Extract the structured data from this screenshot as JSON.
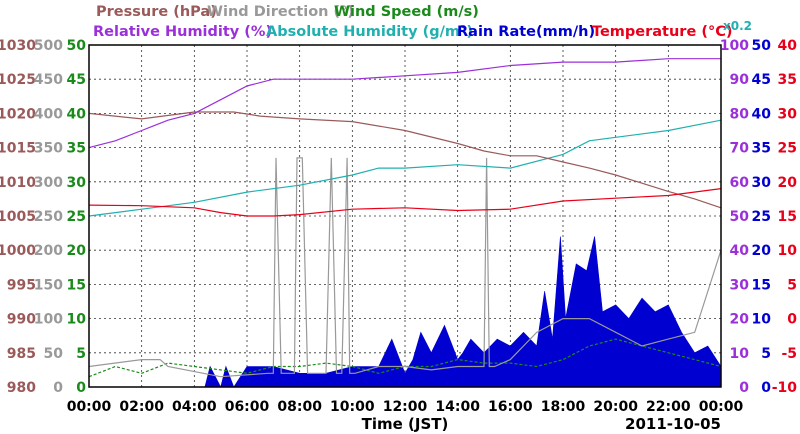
{
  "chart_data": {
    "type": "line",
    "date_label": "2011-10-05",
    "xlabel": "Time (JST)",
    "x_ticks": [
      "00:00",
      "02:00",
      "04:00",
      "06:00",
      "08:00",
      "10:00",
      "12:00",
      "14:00",
      "16:00",
      "18:00",
      "20:00",
      "22:00",
      "00:00"
    ],
    "xlim_hours": [
      0,
      24
    ],
    "legend": [
      {
        "text": "Pressure (hPa)",
        "color": "#9a5a5a"
      },
      {
        "text": "Wind Direction (°)",
        "color": "#999999"
      },
      {
        "text": "Wind Speed (m/s)",
        "color": "#1a8a1a"
      },
      {
        "text": "Relative Humidity (%)",
        "color": "#9b30d9"
      },
      {
        "text": "Absolute Humidity (g/m³)",
        "color": "#20b0b0"
      },
      {
        "text": "x0.2",
        "color": "#20b0b0"
      },
      {
        "text": "Rain Rate(mm/h)",
        "color": "#0000d0"
      },
      {
        "text": "Temperature (°C)",
        "color": "#e8001a"
      }
    ],
    "axes": {
      "pressure": {
        "color": "#9a5a5a",
        "ticks": [
          "1030",
          "1025",
          "1020",
          "1015",
          "1010",
          "1005",
          "1000",
          "995",
          "990",
          "985",
          "980"
        ],
        "ylim": [
          980,
          1030
        ]
      },
      "wind_dir": {
        "color": "#999999",
        "ticks": [
          "500",
          "450",
          "400",
          "350",
          "300",
          "250",
          "200",
          "150",
          "100",
          "50",
          "0"
        ],
        "ylim": [
          0,
          500
        ]
      },
      "wind_speed": {
        "color": "#1a8a1a",
        "ticks": [
          "50",
          "45",
          "40",
          "35",
          "30",
          "25",
          "20",
          "15",
          "10",
          "5",
          "0"
        ],
        "ylim": [
          0,
          50
        ]
      },
      "humidity": {
        "color": "#9b30d9",
        "ticks": [
          "100",
          "90",
          "80",
          "70",
          "60",
          "50",
          "40",
          "30",
          "20",
          "10",
          "0"
        ],
        "ylim": [
          0,
          100
        ]
      },
      "rain": {
        "color": "#0000d0",
        "ticks": [
          "50",
          "45",
          "40",
          "35",
          "30",
          "25",
          "20",
          "15",
          "10",
          "5",
          "0"
        ],
        "ylim": [
          0,
          50
        ]
      },
      "temperature": {
        "color": "#e8001a",
        "ticks": [
          "40",
          "35",
          "30",
          "25",
          "20",
          "15",
          "10",
          "5",
          "0",
          "-5",
          "-10"
        ],
        "ylim": [
          -10,
          40
        ]
      }
    },
    "series": [
      {
        "name": "Pressure (hPa)",
        "axis": "pressure",
        "color": "#9a5a5a",
        "x": [
          0,
          2,
          4,
          5.5,
          6.5,
          8,
          10,
          12,
          14,
          15,
          16,
          17,
          18,
          19,
          20,
          21,
          22,
          23,
          24
        ],
        "y": [
          1020,
          1019.2,
          1020.2,
          1020.2,
          1019.6,
          1019.2,
          1018.8,
          1017.5,
          1015.6,
          1014.5,
          1013.8,
          1013.8,
          1012.9,
          1012,
          1011,
          1009.8,
          1008.6,
          1007.5,
          1006.2
        ]
      },
      {
        "name": "Relative Humidity (%)",
        "axis": "humidity",
        "color": "#9b30d9",
        "x": [
          0,
          1,
          2,
          3,
          4,
          5,
          6,
          7,
          8,
          9,
          10,
          12,
          14,
          16,
          18,
          20,
          22,
          24
        ],
        "y": [
          70,
          72,
          75,
          78,
          80,
          84,
          88,
          90,
          90,
          90,
          90,
          91,
          92,
          94,
          95,
          95,
          96,
          96
        ]
      },
      {
        "name": "Absolute Humidity (g/m³)",
        "axis": "wind_speed",
        "color": "#20b0b0",
        "x": [
          0,
          2,
          4,
          6,
          8,
          10,
          11,
          12,
          14,
          16,
          18,
          19,
          20,
          22,
          24
        ],
        "y": [
          25,
          26,
          27,
          28.5,
          29.5,
          31,
          32,
          32,
          32.5,
          32,
          34,
          36,
          36.5,
          37.5,
          39
        ]
      },
      {
        "name": "Temperature (°C)",
        "axis": "temperature",
        "color": "#e8001a",
        "x": [
          0,
          2,
          4,
          5,
          6,
          7,
          8,
          10,
          12,
          14,
          16,
          18,
          20,
          22,
          24
        ],
        "y": [
          16.6,
          16.5,
          16.2,
          15.5,
          15,
          15,
          15.2,
          16,
          16.2,
          15.8,
          16,
          17.2,
          17.6,
          18,
          19
        ]
      },
      {
        "name": "Wind Direction (°)",
        "axis": "wind_dir",
        "color": "#999999",
        "x": [
          0,
          2,
          2.7,
          3,
          5,
          6.8,
          7.0,
          7.1,
          7.3,
          7.8,
          7.9,
          8.1,
          8.3,
          9.0,
          9.2,
          9.4,
          9.6,
          9.8,
          9.9,
          10.1,
          11,
          12,
          13,
          14,
          15,
          15.1,
          15.2,
          15.4,
          16,
          17,
          18,
          19,
          20,
          21,
          22,
          23,
          24
        ],
        "y": [
          30,
          40,
          40,
          30,
          15,
          20,
          20,
          335,
          20,
          20,
          335,
          335,
          20,
          20,
          335,
          20,
          20,
          335,
          20,
          20,
          30,
          30,
          25,
          30,
          30,
          335,
          30,
          30,
          40,
          80,
          100,
          100,
          80,
          60,
          70,
          80,
          200
        ]
      },
      {
        "name": "Wind Speed (m/s)",
        "axis": "wind_speed",
        "color": "#1a8a1a",
        "x": [
          0,
          1,
          2,
          3,
          4,
          5,
          6,
          7,
          8,
          9,
          10,
          11,
          12,
          13,
          14,
          15,
          16,
          17,
          18,
          19,
          20,
          21,
          22,
          23,
          24
        ],
        "y": [
          1.5,
          3,
          2,
          3.5,
          3,
          2.5,
          2,
          3,
          3,
          3.5,
          3,
          2,
          3,
          3,
          4,
          3.5,
          3.5,
          3,
          4,
          6,
          7,
          6,
          5,
          4,
          3
        ]
      },
      {
        "name": "Rain Rate(mm/h)",
        "axis": "rain",
        "color": "#0000d0",
        "fill": true,
        "x": [
          0,
          4.4,
          4.6,
          5,
          5.2,
          5.5,
          6,
          7,
          8,
          9,
          10,
          11,
          11.5,
          12,
          12.3,
          12.6,
          13,
          13.5,
          14,
          14.2,
          14.5,
          15,
          15.5,
          16,
          16.5,
          17,
          17.3,
          17.6,
          17.9,
          18.1,
          18.5,
          18.9,
          19.2,
          19.5,
          20,
          20.5,
          21,
          21.5,
          22,
          22.5,
          23,
          23.5,
          24
        ],
        "y": [
          0,
          0,
          3,
          0,
          3,
          0,
          3,
          3,
          2,
          2,
          3,
          3,
          7,
          2,
          4,
          8,
          5,
          9,
          4,
          5,
          7,
          5,
          7,
          6,
          8,
          6,
          14,
          7,
          22,
          10,
          18,
          17,
          22,
          11,
          12,
          10,
          13,
          11,
          12,
          8,
          5,
          6,
          3
        ]
      }
    ]
  }
}
